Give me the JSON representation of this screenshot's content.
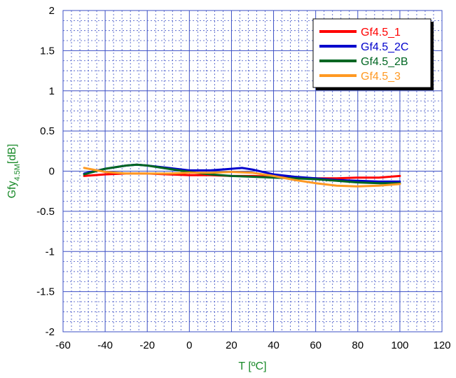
{
  "chart_data": {
    "type": "line",
    "xlabel": "T [ºC]",
    "ylabel_main": "Gfy",
    "ylabel_sub": "4.5M",
    "ylabel_unit": "[dB]",
    "xlim": [
      -60,
      120
    ],
    "ylim": [
      -2,
      2
    ],
    "x_major_ticks": [
      -60,
      -40,
      -20,
      0,
      20,
      40,
      60,
      80,
      100,
      120
    ],
    "y_major_ticks": [
      -2,
      -1.5,
      -1,
      -0.5,
      0,
      0.5,
      1,
      1.5,
      2
    ],
    "x_tick_labels": [
      "-60",
      "-40",
      "-20",
      "0",
      "20",
      "40",
      "60",
      "80",
      "100",
      "120"
    ],
    "y_tick_labels": [
      "-2",
      "-1.5",
      "-1",
      "-0.5",
      "0",
      "0.5",
      "1",
      "1.5",
      "2"
    ],
    "grid": true,
    "legend_position": "top-right",
    "axis_label_color": "#1a8a2a",
    "grid_color": "#3b4fc4",
    "series": [
      {
        "name": "Gf4.5_1",
        "color": "#ff0000",
        "x": [
          -50,
          -40,
          -30,
          -20,
          -10,
          0,
          10,
          20,
          30,
          40,
          50,
          60,
          70,
          80,
          90,
          100
        ],
        "y": [
          -0.06,
          -0.04,
          -0.03,
          -0.03,
          -0.04,
          -0.05,
          -0.05,
          -0.06,
          -0.06,
          -0.07,
          -0.08,
          -0.09,
          -0.09,
          -0.08,
          -0.08,
          -0.06
        ]
      },
      {
        "name": "Gf4.5_2C",
        "color": "#0000cc",
        "x": [
          -50,
          -40,
          -30,
          -25,
          -20,
          -10,
          0,
          10,
          20,
          25,
          30,
          40,
          50,
          60,
          70,
          80,
          90,
          100
        ],
        "y": [
          -0.03,
          0.03,
          0.07,
          0.08,
          0.07,
          0.04,
          0.01,
          0.01,
          0.03,
          0.04,
          0.02,
          -0.04,
          -0.07,
          -0.09,
          -0.11,
          -0.12,
          -0.13,
          -0.13
        ]
      },
      {
        "name": "Gf4.5_2B",
        "color": "#006622",
        "x": [
          -50,
          -40,
          -30,
          -25,
          -20,
          -10,
          0,
          10,
          20,
          30,
          40,
          50,
          60,
          70,
          80,
          90,
          100
        ],
        "y": [
          -0.04,
          0.03,
          0.07,
          0.08,
          0.07,
          0.03,
          -0.01,
          -0.04,
          -0.06,
          -0.07,
          -0.08,
          -0.09,
          -0.1,
          -0.12,
          -0.14,
          -0.15,
          -0.15
        ]
      },
      {
        "name": "Gf4.5_3",
        "color": "#ff9922",
        "x": [
          -50,
          -40,
          -30,
          -20,
          -10,
          0,
          10,
          20,
          30,
          40,
          50,
          60,
          70,
          80,
          90,
          100
        ],
        "y": [
          0.04,
          -0.01,
          -0.03,
          -0.03,
          -0.03,
          -0.02,
          -0.02,
          -0.01,
          -0.02,
          -0.06,
          -0.11,
          -0.15,
          -0.18,
          -0.19,
          -0.18,
          -0.16
        ]
      }
    ]
  }
}
